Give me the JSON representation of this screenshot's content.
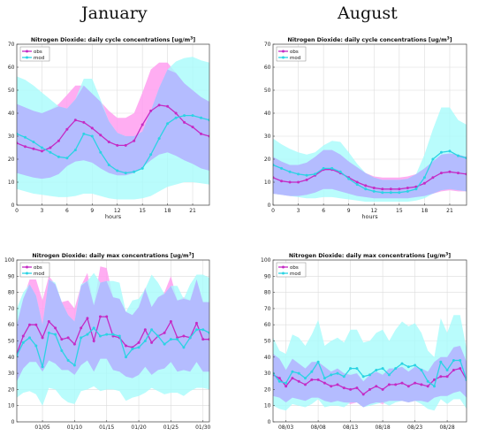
{
  "headers": {
    "left": "January",
    "right": "August"
  },
  "colors": {
    "obs": "#c42bc4",
    "mod": "#2bd3e3",
    "obs_band": "#ff9ff0",
    "mod_band": "#a8fbfb",
    "overlap_band": "#b4b7ff"
  },
  "chart_data": [
    {
      "type": "line",
      "title": "Nitrogen Dioxide: daily cycle concentrations [ug/m",
      "title_sup": "3",
      "title_end": "]",
      "xlabel": "hours",
      "ylabel": "",
      "xlim": [
        0,
        23
      ],
      "ylim": [
        0,
        70
      ],
      "xticks": [
        0,
        3,
        6,
        9,
        12,
        15,
        18,
        21
      ],
      "xtick_labels": [
        "0",
        "3",
        "6",
        "9",
        "12",
        "15",
        "18",
        "21"
      ],
      "yticks": [
        0,
        10,
        20,
        30,
        40,
        50,
        60,
        70
      ],
      "grid": true,
      "legend": "top-left",
      "x": [
        0,
        1,
        2,
        3,
        4,
        5,
        6,
        7,
        8,
        9,
        10,
        11,
        12,
        13,
        14,
        15,
        16,
        17,
        18,
        19,
        20,
        21,
        22,
        23
      ],
      "series": [
        {
          "name": "obs",
          "values": [
            27,
            25.5,
            24.5,
            23.5,
            25,
            28,
            33,
            37,
            36,
            33.5,
            30.5,
            27.5,
            26,
            26,
            28,
            35,
            41,
            43.5,
            43,
            40,
            36,
            34,
            31,
            30
          ],
          "band_lo": [
            14,
            13,
            12,
            11.5,
            12,
            13.5,
            17,
            19,
            19.5,
            18.5,
            16,
            14,
            13,
            13,
            14,
            16.5,
            19.5,
            22,
            23,
            21.5,
            19.5,
            18,
            16,
            15
          ],
          "band_hi": [
            44,
            42.5,
            41,
            40,
            41.5,
            44,
            48,
            52,
            52,
            48.5,
            45,
            41,
            38,
            38,
            40,
            49,
            59,
            62,
            62,
            57.5,
            53,
            50,
            47,
            45
          ]
        },
        {
          "name": "mod",
          "values": [
            31,
            29.5,
            27.5,
            25,
            23,
            21,
            20.5,
            24,
            31,
            30,
            23,
            17.5,
            15,
            14,
            14.5,
            16,
            22,
            29,
            35.5,
            38,
            39,
            39,
            38,
            37
          ],
          "band_lo": [
            7,
            6,
            5,
            4.5,
            4,
            3.5,
            3.5,
            4,
            5,
            5,
            4,
            3,
            2.5,
            2.5,
            2.5,
            3,
            4,
            6,
            8,
            9,
            10,
            10,
            9.5,
            9
          ],
          "band_hi": [
            56,
            54.5,
            52,
            49,
            46,
            43,
            42,
            46,
            55,
            55,
            46,
            36.5,
            31.5,
            30,
            30,
            32,
            41,
            51,
            59,
            62.5,
            64,
            64.5,
            63,
            62
          ]
        }
      ]
    },
    {
      "type": "line",
      "title": "Nitrogen Dioxide: daily cycle concentrations [ug/m",
      "title_sup": "3",
      "title_end": "]",
      "xlabel": "hours",
      "ylabel": "",
      "xlim": [
        0,
        23
      ],
      "ylim": [
        0,
        70
      ],
      "xticks": [
        0,
        3,
        6,
        9,
        12,
        15,
        18,
        21
      ],
      "xtick_labels": [
        "0",
        "3",
        "6",
        "9",
        "12",
        "15",
        "18",
        "21"
      ],
      "yticks": [
        0,
        10,
        20,
        30,
        40,
        50,
        60,
        70
      ],
      "grid": true,
      "legend": "top-left",
      "x": [
        0,
        1,
        2,
        3,
        4,
        5,
        6,
        7,
        8,
        9,
        10,
        11,
        12,
        13,
        14,
        15,
        16,
        17,
        18,
        19,
        20,
        21,
        22,
        23
      ],
      "series": [
        {
          "name": "obs",
          "values": [
            12,
            10.5,
            10,
            10,
            11,
            13,
            15.5,
            15.5,
            14,
            12,
            10,
            8.5,
            7.5,
            7,
            7,
            7,
            7.5,
            8,
            9.5,
            12,
            14,
            14.5,
            14,
            13.5
          ],
          "band_lo": [
            5,
            4.5,
            4,
            4,
            4.5,
            5.5,
            7,
            7,
            6,
            5,
            4,
            3.5,
            3,
            3,
            3,
            3,
            3,
            3.5,
            4,
            5,
            6,
            6.5,
            6,
            6
          ],
          "band_hi": [
            21,
            19,
            17.5,
            17.5,
            18.5,
            21,
            24,
            24,
            22,
            19,
            16.5,
            14,
            12.5,
            12,
            12,
            12,
            12.5,
            13.5,
            16,
            19,
            22,
            22.5,
            22,
            21
          ]
        },
        {
          "name": "mod",
          "values": [
            17.5,
            16,
            14.5,
            13.5,
            13,
            13.5,
            16,
            16,
            14.5,
            11.5,
            9,
            7,
            6,
            5.5,
            5.5,
            5.5,
            6,
            7,
            12,
            20,
            23,
            23.5,
            21.5,
            20.5
          ],
          "band_lo": [
            5,
            4.5,
            4,
            3.5,
            3,
            3,
            3.5,
            3.5,
            3,
            2.5,
            2,
            1.5,
            1.5,
            1.5,
            1.5,
            1.5,
            1.5,
            2,
            3,
            5,
            6.5,
            7,
            6.5,
            6
          ],
          "band_hi": [
            29,
            26.5,
            24.5,
            23,
            22,
            23,
            26,
            28,
            27.5,
            23,
            18,
            14,
            12,
            11,
            11,
            11,
            11.5,
            13.5,
            22,
            33,
            42.5,
            42.5,
            37,
            35
          ]
        }
      ]
    },
    {
      "type": "line",
      "title": "Nitrogen Dioxide: daily max concentrations [ug/m",
      "title_sup": "3",
      "title_end": "]",
      "xlabel": "",
      "ylabel": "",
      "xlim": [
        1,
        31
      ],
      "ylim": [
        0,
        100
      ],
      "xticks": [
        5,
        10,
        15,
        20,
        25,
        30
      ],
      "xtick_labels": [
        "01/05",
        "01/10",
        "01/15",
        "01/20",
        "01/25",
        "01/30"
      ],
      "yticks": [
        0,
        10,
        20,
        30,
        40,
        50,
        60,
        70,
        80,
        90,
        100
      ],
      "grid": true,
      "legend": "top-left",
      "x": [
        1,
        2,
        3,
        4,
        5,
        6,
        7,
        8,
        9,
        10,
        11,
        12,
        13,
        14,
        15,
        16,
        17,
        18,
        19,
        20,
        21,
        22,
        23,
        24,
        25,
        26,
        27,
        28,
        29,
        30,
        31
      ],
      "series": [
        {
          "name": "obs",
          "values": [
            42,
            53,
            60,
            60,
            52,
            62,
            58,
            51,
            52,
            48,
            58,
            64,
            50,
            65,
            65,
            53,
            52,
            47,
            46,
            49,
            57,
            49,
            53,
            55,
            62,
            52,
            53,
            52,
            61,
            51,
            51
          ],
          "band_lo": [
            25,
            33,
            37,
            37,
            31,
            38,
            36,
            32,
            32,
            29,
            35,
            38,
            31,
            39,
            39,
            32,
            31,
            28,
            27,
            29,
            34,
            29,
            32,
            33,
            37,
            31,
            32,
            31,
            37,
            31,
            31
          ],
          "band_hi": [
            60,
            76,
            88,
            88,
            75,
            90,
            85,
            74,
            75,
            70,
            84,
            92,
            72,
            96,
            95,
            77,
            76,
            68,
            66,
            71,
            83,
            71,
            77,
            80,
            90,
            75,
            77,
            75,
            88,
            74,
            74
          ]
        },
        {
          "name": "mod",
          "values": [
            41,
            49,
            52,
            47,
            34,
            55,
            54,
            44,
            38,
            35,
            52,
            54,
            58,
            53,
            54,
            54,
            53,
            40,
            45,
            46,
            50,
            57,
            53,
            48,
            51,
            51,
            46,
            52,
            57,
            57,
            55
          ],
          "band_lo": [
            15,
            18,
            19,
            17,
            10,
            21,
            20,
            15,
            12,
            11,
            19,
            20,
            22,
            19,
            20,
            20,
            19,
            13,
            15,
            16,
            18,
            21,
            19,
            17,
            18,
            18,
            16,
            19,
            21,
            21,
            20
          ],
          "band_hi": [
            70,
            80,
            85,
            78,
            60,
            88,
            86,
            74,
            66,
            62,
            85,
            87,
            92,
            86,
            87,
            87,
            86,
            68,
            75,
            76,
            82,
            91,
            86,
            79,
            84,
            84,
            76,
            85,
            91,
            91,
            89
          ]
        }
      ]
    },
    {
      "type": "line",
      "title": "Nitrogen Dioxide: daily max concentrations [ug/m",
      "title_sup": "3",
      "title_end": "]",
      "xlabel": "",
      "ylabel": "",
      "xlim": [
        1,
        31
      ],
      "ylim": [
        0,
        100
      ],
      "xticks": [
        3,
        8,
        13,
        18,
        23,
        28
      ],
      "xtick_labels": [
        "08/03",
        "08/08",
        "08/13",
        "08/18",
        "08/23",
        "08/28"
      ],
      "yticks": [
        0,
        10,
        20,
        30,
        40,
        50,
        60,
        70,
        80,
        90,
        100
      ],
      "grid": true,
      "legend": "top-left",
      "x": [
        1,
        2,
        3,
        4,
        5,
        6,
        7,
        8,
        9,
        10,
        11,
        12,
        13,
        14,
        15,
        16,
        17,
        18,
        19,
        20,
        21,
        22,
        23,
        24,
        25,
        26,
        27,
        28,
        29,
        30,
        31
      ],
      "series": [
        {
          "name": "obs",
          "values": [
            29,
            27,
            22,
            27,
            25,
            23,
            26,
            26,
            24,
            22,
            23,
            21,
            20,
            21,
            17,
            20,
            22,
            20,
            23,
            23,
            24,
            22,
            24,
            23,
            22,
            26,
            28,
            28,
            32,
            33,
            26
          ],
          "band_lo": [
            16,
            15,
            12,
            15,
            14,
            13,
            15,
            15,
            13,
            12,
            13,
            12,
            11,
            12,
            9,
            11,
            12,
            11,
            13,
            13,
            13,
            12,
            13,
            13,
            12,
            15,
            16,
            16,
            18,
            19,
            15
          ],
          "band_hi": [
            42,
            39,
            32,
            39,
            36,
            33,
            37,
            37,
            34,
            31,
            33,
            30,
            29,
            30,
            25,
            29,
            31,
            29,
            33,
            33,
            34,
            31,
            34,
            33,
            31,
            37,
            40,
            40,
            46,
            47,
            37
          ]
        },
        {
          "name": "mod",
          "values": [
            30,
            25,
            24,
            31,
            30,
            27,
            31,
            37,
            27,
            29,
            30,
            28,
            33,
            33,
            28,
            29,
            32,
            33,
            29,
            33,
            36,
            34,
            35,
            32,
            25,
            22,
            37,
            32,
            38,
            38,
            26
          ],
          "band_lo": [
            10,
            8,
            7,
            11,
            10,
            9,
            11,
            14,
            9,
            10,
            10,
            9,
            12,
            12,
            9,
            10,
            11,
            12,
            10,
            12,
            13,
            12,
            13,
            11,
            8,
            7,
            14,
            11,
            14,
            14,
            8
          ],
          "band_hi": [
            52,
            44,
            42,
            54,
            52,
            47,
            54,
            63,
            47,
            50,
            52,
            49,
            57,
            57,
            49,
            50,
            55,
            57,
            50,
            57,
            62,
            59,
            61,
            55,
            44,
            40,
            64,
            55,
            66,
            66,
            45
          ]
        }
      ]
    }
  ]
}
